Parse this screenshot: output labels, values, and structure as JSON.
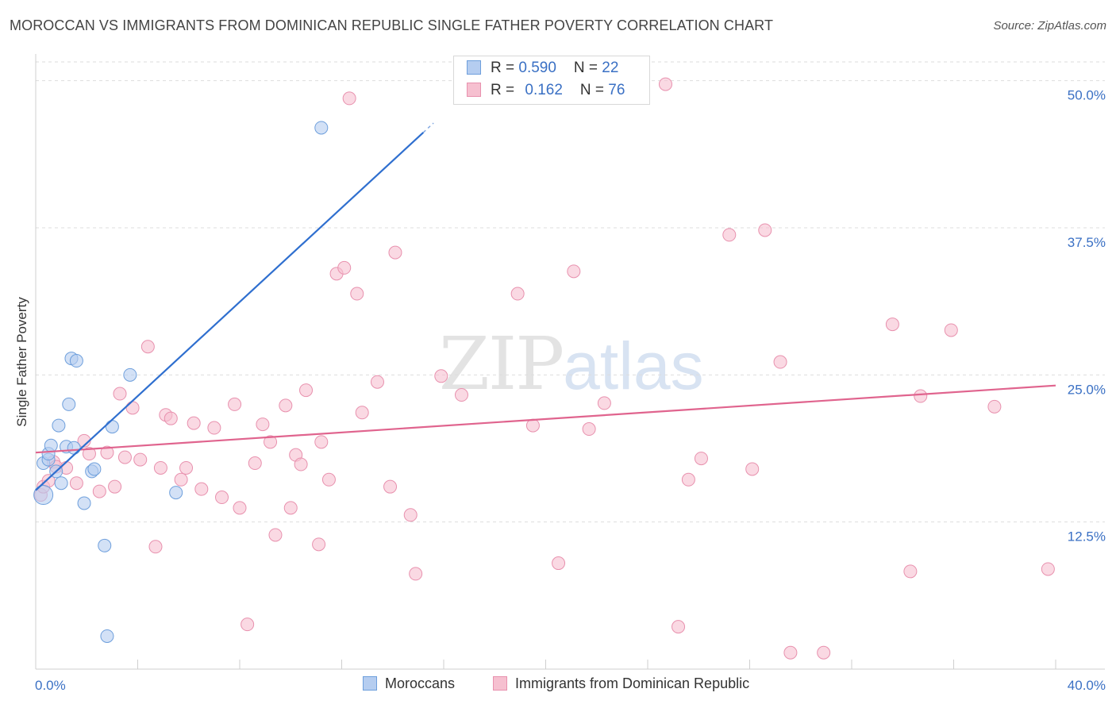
{
  "title": "MOROCCAN VS IMMIGRANTS FROM DOMINICAN REPUBLIC SINGLE FATHER POVERTY CORRELATION CHART",
  "source": "Source: ZipAtlas.com",
  "watermark": {
    "zip": "ZIP",
    "atlas": "atlas"
  },
  "legend": {
    "rows": [
      {
        "r_label": "R = ",
        "r_value": "0.590",
        "n_label": "N = ",
        "n_value": "22"
      },
      {
        "r_label": "R = ",
        "r_value": "0.162",
        "n_label": "N = ",
        "n_value": "76"
      }
    ]
  },
  "colors": {
    "blue_fill": "#b5cdf0",
    "blue_stroke": "#6e9fdc",
    "blue_line": "#2f6fcf",
    "pink_fill": "#f6c0d0",
    "pink_stroke": "#e891ae",
    "pink_line": "#e0648e",
    "tick_text": "#3a70c4",
    "grid": "#dddddd"
  },
  "chart_data": {
    "type": "scatter",
    "title": "MOROCCAN VS IMMIGRANTS FROM DOMINICAN REPUBLIC SINGLE FATHER POVERTY CORRELATION CHART",
    "xlabel": "",
    "ylabel": "Single Father Poverty",
    "xlim": [
      0,
      40
    ],
    "ylim": [
      0,
      52
    ],
    "x_tick_labels": [
      "0.0%",
      "40.0%"
    ],
    "y_ticks": [
      12.5,
      25.0,
      37.5,
      50.0
    ],
    "y_tick_labels": [
      "12.5%",
      "25.0%",
      "37.5%",
      "50.0%"
    ],
    "grid": true,
    "legend_position": "bottom",
    "series": [
      {
        "name": "Moroccans",
        "color": "#b5cdf0",
        "points": [
          [
            0.3,
            14.8
          ],
          [
            0.3,
            17.5
          ],
          [
            0.5,
            17.8
          ],
          [
            0.5,
            18.3
          ],
          [
            0.6,
            19.0
          ],
          [
            0.8,
            16.8
          ],
          [
            0.9,
            20.7
          ],
          [
            1.0,
            15.8
          ],
          [
            1.2,
            18.9
          ],
          [
            1.3,
            22.5
          ],
          [
            1.4,
            26.4
          ],
          [
            1.5,
            18.8
          ],
          [
            1.6,
            26.2
          ],
          [
            1.9,
            14.1
          ],
          [
            2.2,
            16.8
          ],
          [
            2.3,
            17.0
          ],
          [
            2.7,
            10.5
          ],
          [
            2.8,
            2.8
          ],
          [
            3.0,
            20.6
          ],
          [
            3.7,
            25.0
          ],
          [
            5.5,
            15.0
          ],
          [
            11.2,
            46.0
          ]
        ],
        "trend": {
          "x": [
            0,
            15.6
          ],
          "y": [
            15.2,
            46.4
          ],
          "solid_until_x": 15.2
        }
      },
      {
        "name": "Immigrants from Dominican Republic",
        "color": "#f6c0d0",
        "points": [
          [
            0.2,
            14.8
          ],
          [
            0.3,
            15.5
          ],
          [
            0.5,
            16.0
          ],
          [
            0.7,
            17.6
          ],
          [
            0.8,
            17.2
          ],
          [
            1.2,
            17.1
          ],
          [
            1.6,
            15.8
          ],
          [
            1.9,
            19.4
          ],
          [
            2.1,
            18.3
          ],
          [
            2.5,
            15.1
          ],
          [
            2.8,
            18.4
          ],
          [
            3.1,
            15.5
          ],
          [
            3.3,
            23.4
          ],
          [
            3.5,
            18.0
          ],
          [
            3.8,
            22.2
          ],
          [
            4.1,
            17.8
          ],
          [
            4.4,
            27.4
          ],
          [
            4.7,
            10.4
          ],
          [
            4.9,
            17.1
          ],
          [
            5.1,
            21.6
          ],
          [
            5.3,
            21.3
          ],
          [
            5.7,
            16.1
          ],
          [
            5.9,
            17.1
          ],
          [
            6.2,
            20.9
          ],
          [
            6.5,
            15.3
          ],
          [
            7.0,
            20.5
          ],
          [
            7.3,
            14.6
          ],
          [
            7.8,
            22.5
          ],
          [
            8.0,
            13.7
          ],
          [
            8.3,
            3.8
          ],
          [
            8.6,
            17.5
          ],
          [
            8.9,
            20.8
          ],
          [
            9.2,
            19.3
          ],
          [
            9.4,
            11.4
          ],
          [
            9.8,
            22.4
          ],
          [
            10.0,
            13.7
          ],
          [
            10.2,
            18.2
          ],
          [
            10.4,
            17.4
          ],
          [
            10.6,
            23.7
          ],
          [
            11.1,
            10.6
          ],
          [
            11.2,
            19.3
          ],
          [
            11.5,
            16.1
          ],
          [
            11.8,
            33.6
          ],
          [
            12.1,
            34.1
          ],
          [
            12.3,
            48.5
          ],
          [
            12.6,
            31.9
          ],
          [
            12.8,
            21.8
          ],
          [
            13.4,
            24.4
          ],
          [
            13.9,
            15.5
          ],
          [
            14.1,
            35.4
          ],
          [
            14.7,
            13.1
          ],
          [
            14.9,
            8.1
          ],
          [
            15.9,
            24.9
          ],
          [
            16.7,
            23.3
          ],
          [
            18.9,
            31.9
          ],
          [
            19.5,
            20.7
          ],
          [
            20.5,
            9.0
          ],
          [
            21.1,
            33.8
          ],
          [
            21.7,
            20.4
          ],
          [
            22.3,
            22.6
          ],
          [
            24.7,
            49.7
          ],
          [
            25.2,
            3.6
          ],
          [
            25.6,
            16.1
          ],
          [
            26.1,
            17.9
          ],
          [
            27.2,
            36.9
          ],
          [
            28.1,
            17.0
          ],
          [
            28.6,
            37.3
          ],
          [
            29.2,
            26.1
          ],
          [
            29.6,
            1.4
          ],
          [
            30.9,
            1.4
          ],
          [
            33.6,
            29.3
          ],
          [
            34.3,
            8.3
          ],
          [
            34.7,
            23.2
          ],
          [
            35.9,
            28.8
          ],
          [
            37.6,
            22.3
          ],
          [
            39.7,
            8.5
          ]
        ],
        "trend": {
          "x": [
            0,
            40
          ],
          "y": [
            18.4,
            24.1
          ]
        }
      }
    ]
  }
}
